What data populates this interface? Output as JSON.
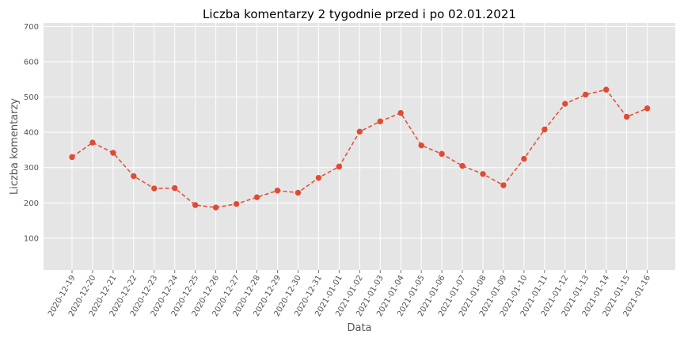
{
  "chart_data": {
    "type": "line",
    "title": "Liczba komentarzy 2 tygodnie przed i po 02.01.2021",
    "xlabel": "Data",
    "ylabel": "Liczba komentarzy",
    "categories": [
      "2020-12-19",
      "2020-12-20",
      "2020-12-21",
      "2020-12-22",
      "2020-12-23",
      "2020-12-24",
      "2020-12-25",
      "2020-12-26",
      "2020-12-27",
      "2020-12-28",
      "2020-12-29",
      "2020-12-30",
      "2020-12-31",
      "2021-01-01",
      "2021-01-02",
      "2021-01-03",
      "2021-01-04",
      "2021-01-05",
      "2021-01-06",
      "2021-01-07",
      "2021-01-08",
      "2021-01-09",
      "2021-01-10",
      "2021-01-11",
      "2021-01-12",
      "2021-01-13",
      "2021-01-14",
      "2021-01-15",
      "2021-01-16"
    ],
    "series": [
      {
        "values": [
          330,
          371,
          342,
          276,
          241,
          242,
          194,
          187,
          197,
          216,
          235,
          229,
          271,
          303,
          402,
          431,
          455,
          363,
          339,
          305,
          282,
          250,
          325,
          408,
          481,
          507,
          521,
          444,
          468
        ],
        "color": "#e24a33"
      }
    ],
    "ylim": [
      10,
      710
    ],
    "yticks": [
      100,
      200,
      300,
      400,
      500,
      600,
      700
    ],
    "grid": true,
    "background": "#e5e5e5"
  }
}
